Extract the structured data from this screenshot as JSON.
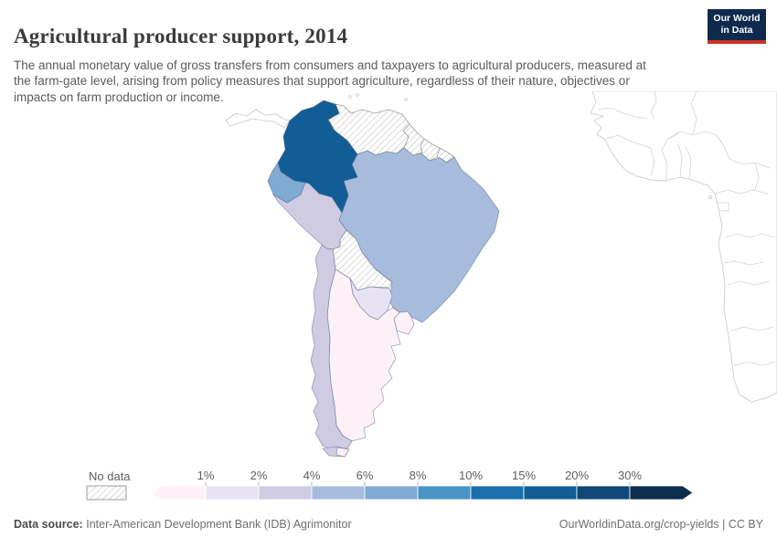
{
  "title": "Agricultural producer support, 2014",
  "subtitle": "The annual monetary value of gross transfers from consumers and taxpayers to agricultural producers, measured at the farm-gate level, arising from policy measures that support agriculture, regardless of their nature, objectives or impacts on farm production or income.",
  "logo": {
    "line1": "Our World",
    "line2": "in Data",
    "bg": "#102a4e",
    "accent": "#cc3227"
  },
  "legend": {
    "no_data_label": "No data",
    "ticks": [
      "1%",
      "2%",
      "4%",
      "6%",
      "8%",
      "10%",
      "15%",
      "20%",
      "30%"
    ],
    "colors": [
      "#fdf1f7",
      "#e7e3f2",
      "#cfcbe2",
      "#a7bcdc",
      "#7fabd3",
      "#4a93c5",
      "#1c6fad",
      "#135d96",
      "#0f4878",
      "#0c2d4e"
    ]
  },
  "map": {
    "countries": {
      "colombia": {
        "label": "Colombia",
        "bucket": "15-20%",
        "fill": "#135d96"
      },
      "ecuador": {
        "label": "Ecuador",
        "bucket": "6-8%",
        "fill": "#7fabd3"
      },
      "brazil": {
        "label": "Brazil",
        "bucket": "4-6%",
        "fill": "#a7bcdc"
      },
      "peru": {
        "label": "Peru",
        "bucket": "2-4%",
        "fill": "#cfcbe2"
      },
      "chile": {
        "label": "Chile",
        "bucket": "2-4%",
        "fill": "#cfcbe2"
      },
      "paraguay": {
        "label": "Paraguay",
        "bucket": "1-2%",
        "fill": "#e7e3f2"
      },
      "argentina": {
        "label": "Argentina",
        "bucket": "<1%",
        "fill": "#fdf1f7"
      },
      "uruguay": {
        "label": "Uruguay",
        "bucket": "<1%",
        "fill": "#fdf1f7"
      },
      "venezuela": {
        "label": "Venezuela",
        "bucket": "No data",
        "fill": "hatch"
      },
      "guyana": {
        "label": "Guyana",
        "bucket": "No data",
        "fill": "hatch"
      },
      "suriname": {
        "label": "Suriname",
        "bucket": "No data",
        "fill": "hatch"
      },
      "french_guiana": {
        "label": "French Guiana",
        "bucket": "No data",
        "fill": "hatch"
      },
      "bolivia": {
        "label": "Bolivia",
        "bucket": "No data",
        "fill": "hatch"
      }
    }
  },
  "footer": {
    "source_label": "Data source:",
    "source_value": "Inter-American Development Bank (IDB) Agrimonitor",
    "attribution": "OurWorldinData.org/crop-yields | CC BY"
  },
  "chart_data": {
    "type": "choropleth_map",
    "title": "Agricultural producer support, 2014",
    "unit": "% (share, producer support estimate)",
    "region_shown": "South America (west coast of Africa visible as unshaded background)",
    "bins": [
      "No data",
      "<1%",
      "1-2%",
      "2-4%",
      "4-6%",
      "6-8%",
      "8-10%",
      "10-15%",
      "15-20%",
      "20-30%",
      ">30%"
    ],
    "bin_colors": [
      "hatched",
      "#fdf1f7",
      "#e7e3f2",
      "#cfcbe2",
      "#a7bcdc",
      "#7fabd3",
      "#4a93c5",
      "#1c6fad",
      "#135d96",
      "#0f4878",
      "#0c2d4e"
    ],
    "values": {
      "Colombia": "15-20%",
      "Ecuador": "6-8%",
      "Brazil": "4-6%",
      "Peru": "2-4%",
      "Chile": "2-4%",
      "Paraguay": "1-2%",
      "Argentina": "<1%",
      "Uruguay": "<1%",
      "Venezuela": "No data",
      "Guyana": "No data",
      "Suriname": "No data",
      "French Guiana": "No data",
      "Bolivia": "No data"
    },
    "legend_position": "bottom",
    "grid": false
  }
}
